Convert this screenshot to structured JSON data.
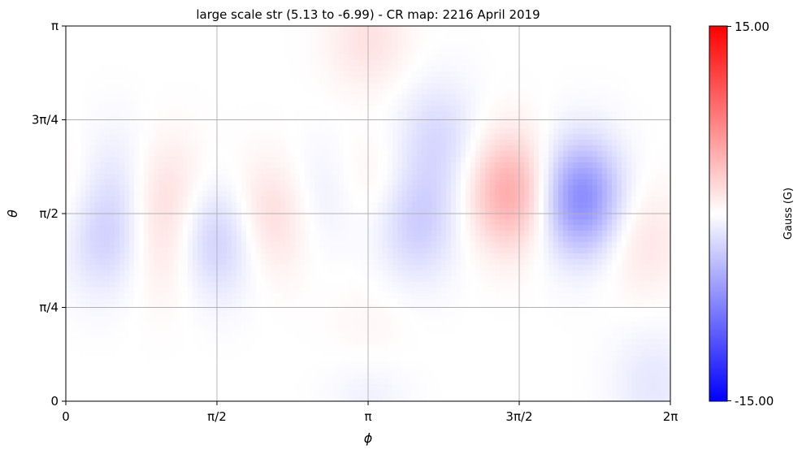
{
  "chart_data": {
    "type": "heatmap",
    "title": "large scale str (5.13 to -6.99) - CR map: 2216 April 2019",
    "xlabel": "ϕ",
    "ylabel": "θ",
    "xlim": [
      0,
      6.283185
    ],
    "ylim": [
      0,
      3.141593
    ],
    "x_ticks": [
      {
        "value": 0,
        "label": "0"
      },
      {
        "value": 1.570796,
        "label": "π/2"
      },
      {
        "value": 3.141593,
        "label": "π"
      },
      {
        "value": 4.712389,
        "label": "3π/2"
      },
      {
        "value": 6.283185,
        "label": "2π"
      }
    ],
    "y_ticks": [
      {
        "value": 0,
        "label": "0"
      },
      {
        "value": 0.785398,
        "label": "π/4"
      },
      {
        "value": 1.570796,
        "label": "π/2"
      },
      {
        "value": 2.356194,
        "label": "3π/4"
      },
      {
        "value": 3.141593,
        "label": "π"
      }
    ],
    "grid": true,
    "colormap": "bwr",
    "colorbar": {
      "label": "Gauss (G)",
      "min": -15.0,
      "max": 15.0,
      "min_label": "-15.00",
      "max_label": "15.00",
      "low_color": "#0000ff",
      "mid_color": "#ffffff",
      "high_color": "#ff0000"
    },
    "field_features": [
      {
        "phi": 3.14,
        "theta": 3.0,
        "value": 1.8
      },
      {
        "phi": 3.14,
        "theta": 2.45,
        "value": -0.4
      },
      {
        "phi": 3.14,
        "theta": 0.4,
        "value": 1.3
      },
      {
        "phi": 3.14,
        "theta": 0.15,
        "value": -1.6
      },
      {
        "phi": 0.42,
        "theta": 1.38,
        "value": -2.8
      },
      {
        "phi": 0.55,
        "theta": 1.9,
        "value": -1.3
      },
      {
        "phi": 1.02,
        "theta": 1.75,
        "value": 2.0
      },
      {
        "phi": 1.03,
        "theta": 1.25,
        "value": 1.5
      },
      {
        "phi": 1.55,
        "theta": 1.35,
        "value": -3.2
      },
      {
        "phi": 2.15,
        "theta": 1.55,
        "value": 2.4
      },
      {
        "phi": 2.65,
        "theta": 1.7,
        "value": -1.3
      },
      {
        "phi": 3.2,
        "theta": 1.85,
        "value": 1.2
      },
      {
        "phi": 3.65,
        "theta": 1.5,
        "value": -3.0
      },
      {
        "phi": 3.87,
        "theta": 2.2,
        "value": -2.2
      },
      {
        "phi": 4.62,
        "theta": 1.75,
        "value": 5.13
      },
      {
        "phi": 5.35,
        "theta": 1.7,
        "value": -6.99
      },
      {
        "phi": 6.0,
        "theta": 1.35,
        "value": 1.6
      },
      {
        "phi": 0.02,
        "theta": 1.75,
        "value": 1.0
      },
      {
        "phi": 6.1,
        "theta": 0.15,
        "value": -1.4
      }
    ]
  }
}
